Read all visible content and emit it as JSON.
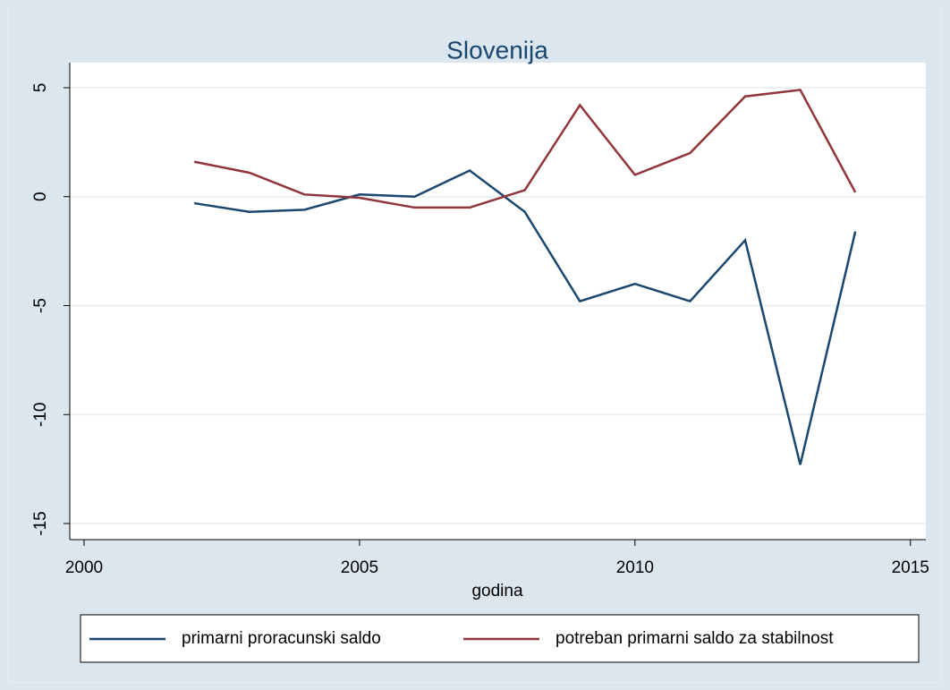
{
  "chart_data": {
    "type": "line",
    "title": "Slovenija",
    "xlabel": "godina",
    "x": [
      2002,
      2003,
      2004,
      2005,
      2006,
      2007,
      2008,
      2009,
      2010,
      2011,
      2012,
      2013,
      2014
    ],
    "series": [
      {
        "name": "primarni proracunski saldo",
        "color": "#1a476f",
        "values": [
          -0.3,
          -0.7,
          -0.6,
          0.1,
          0.0,
          1.2,
          -0.7,
          -4.8,
          -4.0,
          -4.8,
          -2.0,
          -12.3,
          -1.6
        ]
      },
      {
        "name": "potreban primarni saldo za stabilnost",
        "color": "#90353b",
        "values": [
          1.6,
          1.1,
          0.1,
          -0.05,
          -0.5,
          -0.5,
          0.3,
          4.2,
          1.0,
          2.0,
          4.6,
          4.9,
          0.2
        ]
      }
    ],
    "xlim": [
      1999.74,
      2015.28
    ],
    "xticks": [
      2000,
      2005,
      2010,
      2015
    ],
    "ylim": [
      -15.74,
      6.15
    ],
    "yticks": [
      -15,
      -10,
      -5,
      0,
      5
    ],
    "grid": true,
    "legend": "bottom"
  }
}
